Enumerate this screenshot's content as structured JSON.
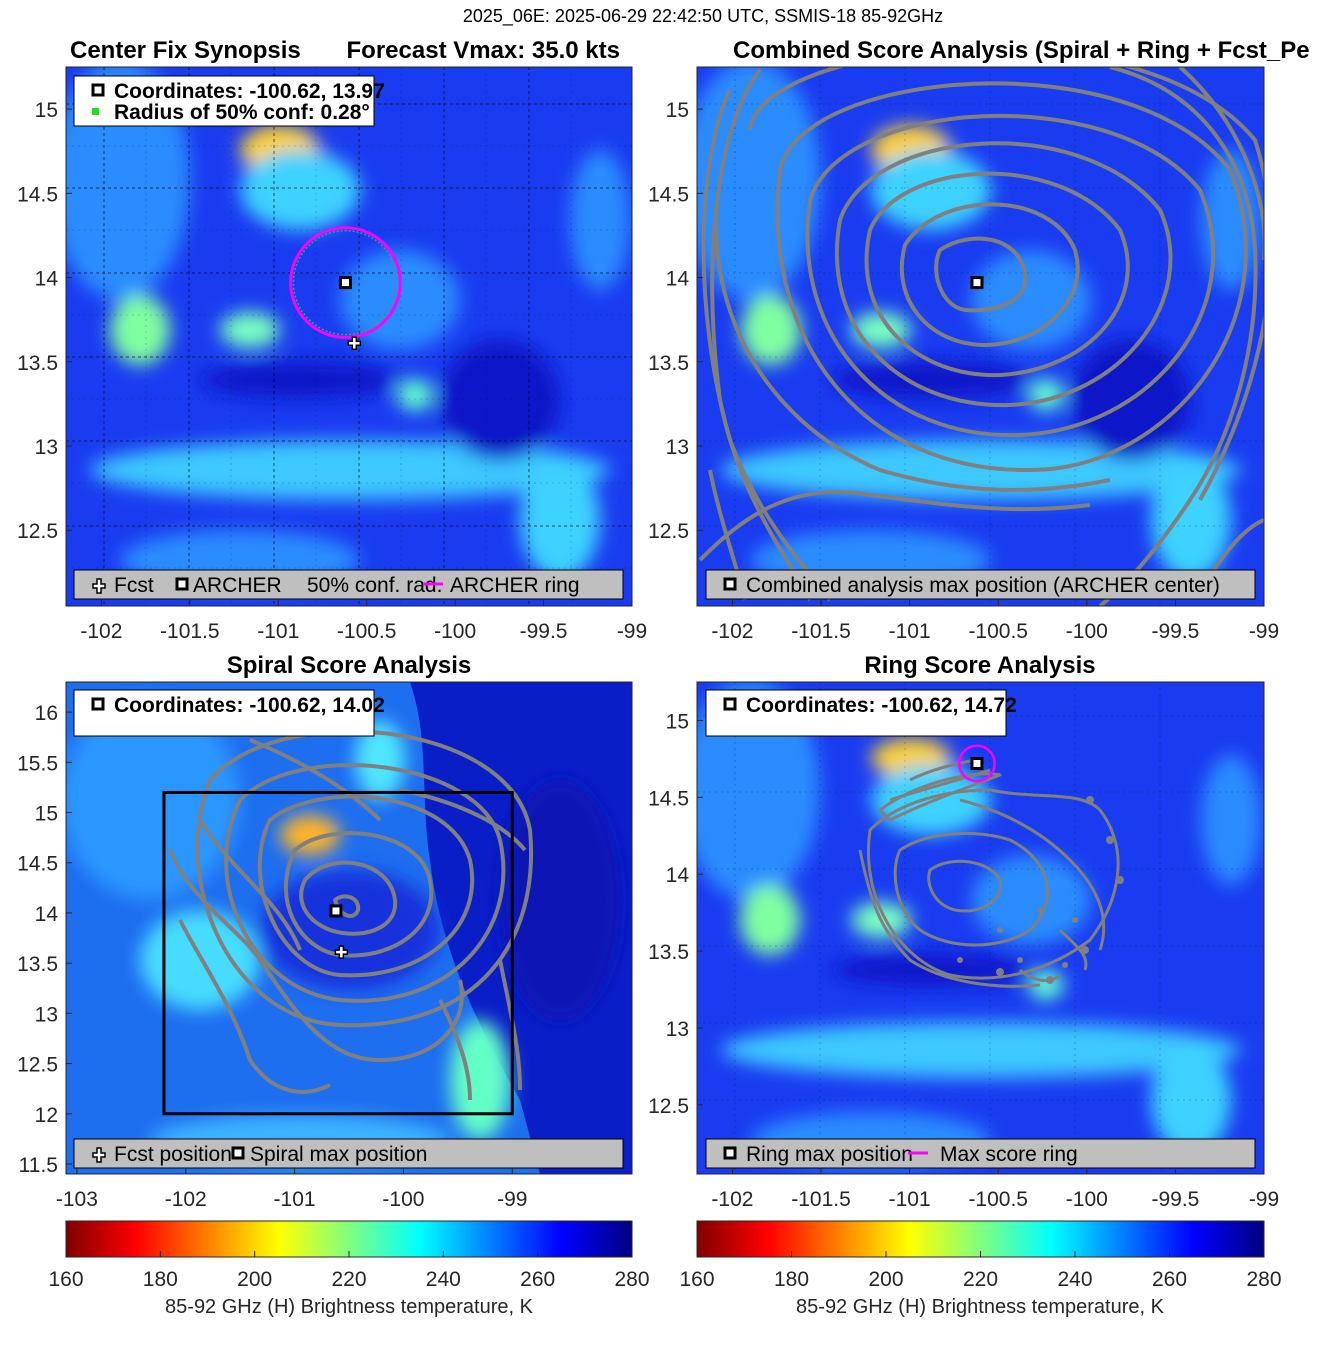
{
  "figure_title": "2025_06E: 2025-06-29 22:42:50 UTC, SSMIS-18 85-92GHz",
  "colors": {
    "ring_magenta": "#ff00ff",
    "contour_gray": "#808080",
    "marker_black": "#000000",
    "legend_bg": "#bfbfbf",
    "conf_green": "#22dd22"
  },
  "chart_data": [
    {
      "type": "heatmap",
      "title_left": "Center Fix Synopsis",
      "title_right": "Forecast Vmax: 35.0 kts",
      "xlim": [
        -102.2,
        -99
      ],
      "ylim": [
        12.05,
        15.25
      ],
      "xticks": [
        -102,
        -101.5,
        -101,
        -100.5,
        -100,
        -99.5,
        -99
      ],
      "xtick_labels": [
        "-102",
        "-101.5",
        "-101",
        "-100.5",
        "-100",
        "-99.5",
        "-99"
      ],
      "yticks": [
        12.5,
        13,
        13.5,
        14,
        14.5,
        15
      ],
      "ytick_labels": [
        "12.5",
        "13",
        "13.5",
        "14",
        "14.5",
        "15"
      ],
      "grid": true,
      "archer_center": [
        -100.62,
        13.97
      ],
      "forecast_position": [
        -100.57,
        13.61
      ],
      "ring_radius_deg": 0.31,
      "conf_radius_deg": 0.28,
      "info_lines": [
        "Coordinates: -100.62, 13.97",
        "Radius of 50% conf: 0.28°"
      ],
      "legend": [
        "Fcst",
        "ARCHER",
        "50% conf. rad.",
        "ARCHER ring"
      ]
    },
    {
      "type": "heatmap",
      "title": "Combined Score Analysis (Spiral + Ring + Fcst_Pe",
      "xlim": [
        -102.2,
        -99
      ],
      "ylim": [
        12.05,
        15.25
      ],
      "xticks": [
        -102,
        -101.5,
        -101,
        -100.5,
        -100,
        -99.5,
        -99
      ],
      "xtick_labels": [
        "-102",
        "-101.5",
        "-101",
        "-100.5",
        "-100",
        "-99.5",
        "-99"
      ],
      "yticks": [
        12.5,
        13,
        13.5,
        14,
        14.5,
        15
      ],
      "ytick_labels": [
        "12.5",
        "13",
        "13.5",
        "14",
        "14.5",
        "15"
      ],
      "grid": true,
      "max_position": [
        -100.62,
        13.97
      ],
      "legend": [
        "Combined analysis max position (ARCHER center)"
      ]
    },
    {
      "type": "heatmap",
      "title": "Spiral Score Analysis",
      "xlim": [
        -103.1,
        -97.9
      ],
      "ylim": [
        11.4,
        16.3
      ],
      "xticks": [
        -103,
        -102,
        -101,
        -100,
        -99
      ],
      "xtick_labels": [
        "-103",
        "-102",
        "-101",
        "-100",
        "-99"
      ],
      "yticks": [
        11.5,
        12,
        12.5,
        13,
        13.5,
        14,
        14.5,
        15,
        15.5,
        16
      ],
      "ytick_labels": [
        "11.5",
        "12",
        "12.5",
        "13",
        "13.5",
        "14",
        "14.5",
        "15",
        "15.5",
        "16"
      ],
      "grid": false,
      "spiral_max": [
        -100.62,
        14.02
      ],
      "forecast_position": [
        -100.57,
        13.61
      ],
      "search_box": [
        -102.2,
        -99.0,
        12.0,
        15.2
      ],
      "info_lines": [
        "Coordinates: -100.62, 14.02"
      ],
      "legend": [
        "Fcst position",
        "Spiral max position"
      ]
    },
    {
      "type": "heatmap",
      "title": "Ring Score Analysis",
      "xlim": [
        -102.2,
        -99
      ],
      "ylim": [
        12.05,
        15.25
      ],
      "xticks": [
        -102,
        -101.5,
        -101,
        -100.5,
        -100,
        -99.5,
        -99
      ],
      "xtick_labels": [
        "-102",
        "-101.5",
        "-101",
        "-100.5",
        "-100",
        "-99.5",
        "-99"
      ],
      "yticks": [
        12.5,
        13,
        13.5,
        14,
        14.5,
        15
      ],
      "ytick_labels": [
        "12.5",
        "13",
        "13.5",
        "14",
        "14.5",
        "15"
      ],
      "grid": true,
      "ring_max": [
        -100.62,
        14.72
      ],
      "ring_radius_deg": 0.1,
      "info_lines": [
        "Coordinates: -100.62, 14.72"
      ],
      "legend": [
        "Ring max position",
        "Max score ring"
      ]
    }
  ],
  "colorbar": {
    "range": [
      160,
      280
    ],
    "ticks": [
      "160",
      "180",
      "200",
      "220",
      "240",
      "260",
      "280"
    ],
    "label": "85-92 GHz (H) Brightness temperature, K"
  }
}
